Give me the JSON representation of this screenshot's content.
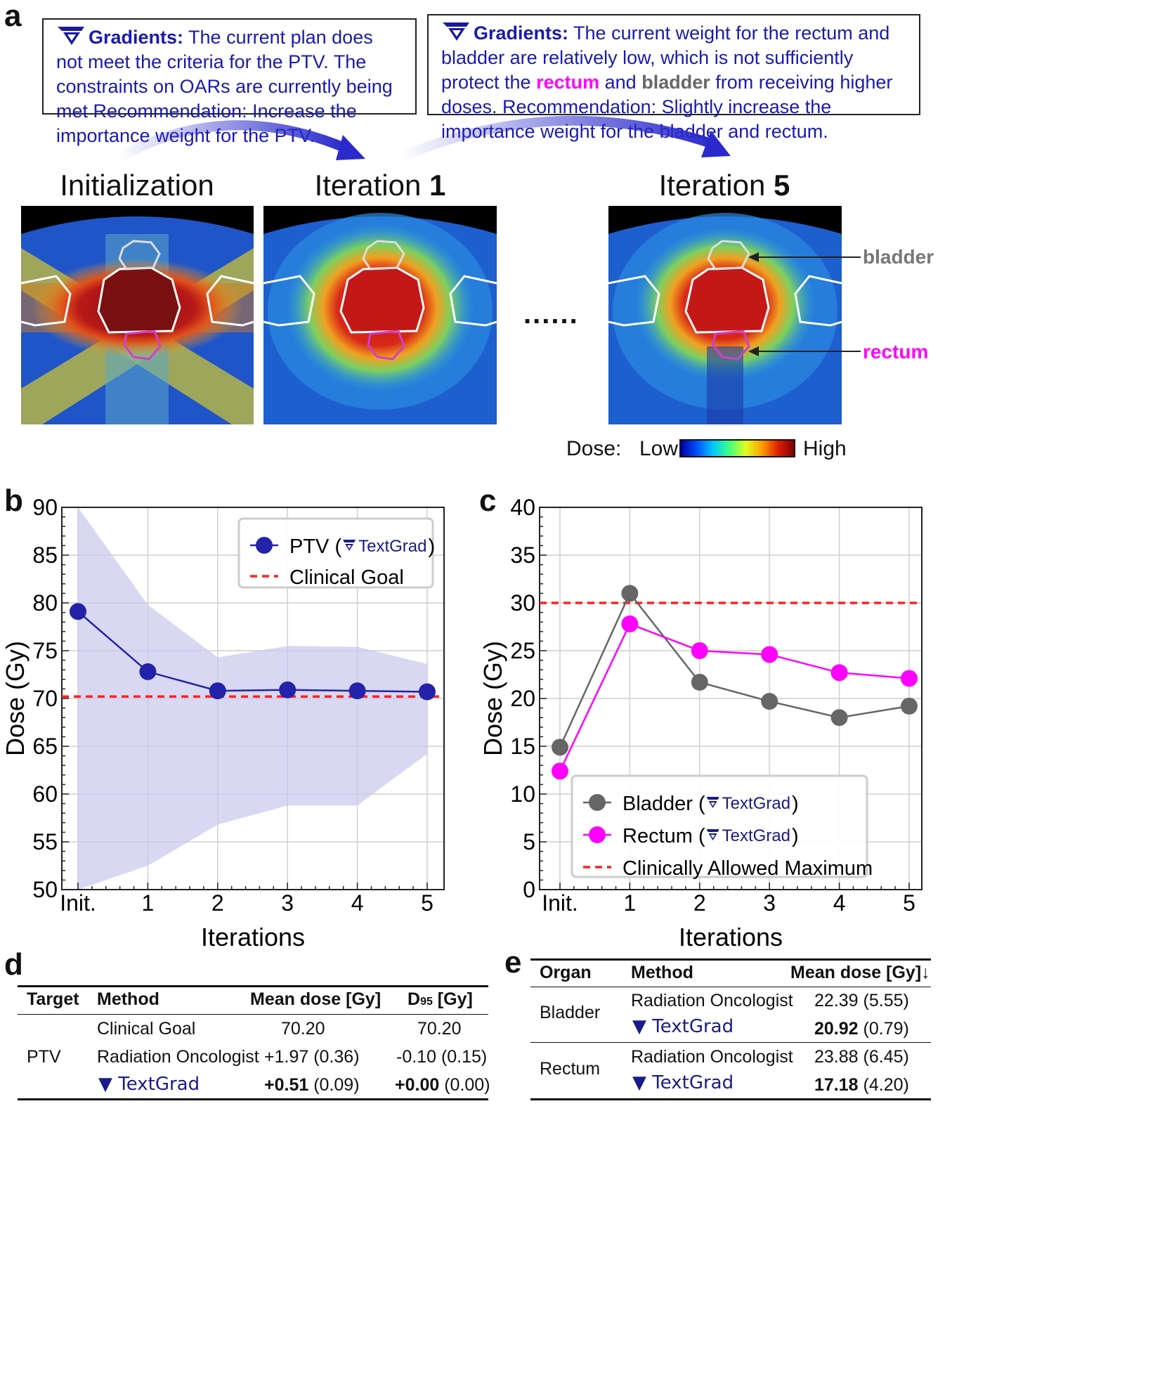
{
  "panels": {
    "a": "a",
    "b": "b",
    "c": "c",
    "d": "d",
    "e": "e"
  },
  "gradients": [
    {
      "label": "Gradients:",
      "text": "The current plan does not meet the criteria for the PTV.  The constraints on OARs are currently being met Recommendation: Increase the importance weight for the PTV."
    },
    {
      "label": "Gradients:",
      "text_1": "The current weight for the rectum and bladder are relatively low, which is not sufficiently protect the",
      "rectum": "rectum",
      "text_2": "and",
      "bladder": "bladder",
      "text_3": "from receiving higher doses. Recommendation: Slightly increase the importance weight for the bladder and rectum."
    }
  ],
  "scans": [
    {
      "title": "Initialization"
    },
    {
      "title_prefix": "Iteration ",
      "title_num": "1"
    },
    {
      "title_prefix": "Iteration ",
      "title_num": "5"
    }
  ],
  "ellipsis": "......",
  "organ_labels": {
    "bladder": "bladder",
    "rectum": "rectum"
  },
  "colorbar": {
    "label": "Dose:",
    "low": "Low",
    "high": "High"
  },
  "colors": {
    "ptv": "#2222aa",
    "bladder": "#666666",
    "rectum": "#ff00ff",
    "goal": "#ff2222",
    "gradient_text": "#1a1ab0"
  },
  "chart_data": [
    {
      "type": "line",
      "panel": "b",
      "categories": [
        "Init.",
        "1",
        "2",
        "3",
        "4",
        "5"
      ],
      "series": [
        {
          "name": "PTV",
          "method": "TextGrad",
          "values": [
            79.1,
            72.8,
            70.8,
            70.9,
            70.8,
            70.7
          ],
          "band_upper": [
            95,
            79.8,
            74.3,
            75.5,
            75.4,
            73.6
          ],
          "band_lower": [
            45,
            52.5,
            56.8,
            58.8,
            58.8,
            64.2
          ]
        }
      ],
      "reference_line": {
        "name": "Clinical Goal",
        "value": 70.2
      },
      "legend": [
        {
          "label": "PTV (",
          "logo": "TextGrad",
          "suffix": ")"
        },
        {
          "label": "Clinical Goal"
        }
      ],
      "xlabel": "Iterations",
      "ylabel": "Dose (Gy)",
      "ylim": [
        50,
        90
      ],
      "yticks": [
        "50",
        "55",
        "60",
        "65",
        "70",
        "75",
        "80",
        "85",
        "90"
      ],
      "legend_position": "top-right",
      "grid": true
    },
    {
      "type": "line",
      "panel": "c",
      "categories": [
        "Init.",
        "1",
        "2",
        "3",
        "4",
        "5"
      ],
      "series": [
        {
          "name": "Bladder",
          "method": "TextGrad",
          "values": [
            14.9,
            31.0,
            21.7,
            19.7,
            18.0,
            19.2
          ]
        },
        {
          "name": "Rectum",
          "method": "TextGrad",
          "values": [
            12.4,
            27.8,
            25.0,
            24.6,
            22.7,
            22.1
          ]
        }
      ],
      "reference_line": {
        "name": "Clinically Allowed Maximum",
        "value": 30
      },
      "legend": [
        {
          "label": "Bladder (",
          "logo": "TextGrad",
          "suffix": ")"
        },
        {
          "label": "Rectum (",
          "logo": "TextGrad",
          "suffix": ")"
        },
        {
          "label": "Clinically Allowed Maximum"
        }
      ],
      "xlabel": "Iterations",
      "ylabel": "Dose (Gy)",
      "ylim": [
        0,
        40
      ],
      "yticks": [
        "0",
        "5",
        "10",
        "15",
        "20",
        "25",
        "30",
        "35",
        "40"
      ],
      "legend_position": "bottom-left",
      "grid": true
    }
  ],
  "table_d": {
    "headers": [
      "Target",
      "Method",
      "Mean dose [Gy]",
      "D",
      "95",
      " [Gy]"
    ],
    "target": "PTV",
    "rows": [
      {
        "method": "Clinical Goal",
        "mean": "70.20",
        "mean_sd": "",
        "d95": "70.20",
        "d95_sd": ""
      },
      {
        "method": "Radiation Oncologist",
        "mean": "+1.97",
        "mean_sd": "(0.36)",
        "d95": "-0.10",
        "d95_sd": "(0.15)"
      },
      {
        "method": "TextGrad",
        "mean": "+0.51",
        "mean_sd": "(0.09)",
        "d95": "+0.00",
        "d95_sd": "(0.00)"
      }
    ]
  },
  "table_e": {
    "headers": [
      "Organ",
      "Method",
      "Mean dose [Gy]↓"
    ],
    "groups": [
      {
        "organ": "Bladder",
        "rows": [
          {
            "method": "Radiation Oncologist",
            "mean": "22.39",
            "sd": "(5.55)"
          },
          {
            "method": "TextGrad",
            "mean": "20.92",
            "sd": "(0.79)"
          }
        ]
      },
      {
        "organ": "Rectum",
        "rows": [
          {
            "method": "Radiation Oncologist",
            "mean": "23.88",
            "sd": "(6.45)"
          },
          {
            "method": "TextGrad",
            "mean": "17.18",
            "sd": "(4.20)"
          }
        ]
      }
    ]
  }
}
